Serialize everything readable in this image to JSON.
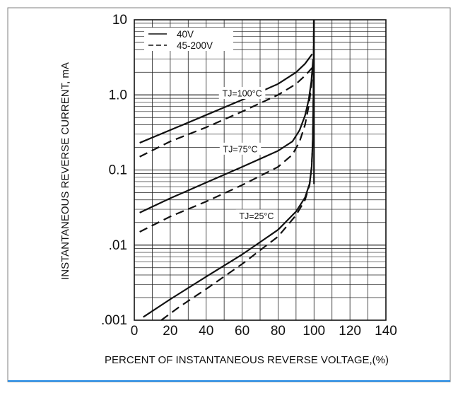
{
  "chart_data": {
    "type": "line",
    "title": "",
    "xlabel": "PERCENT OF INSTANTANEOUS REVERSE VOLTAGE,(%)",
    "ylabel": "INSTANTANEOUS REVERSE CURRENT, mA",
    "xlim": [
      0,
      140
    ],
    "ylim": [
      0.001,
      10
    ],
    "y_scale": "log",
    "grid": true,
    "x_ticks": [
      "0",
      "20",
      "40",
      "60",
      "80",
      "100",
      "120",
      "140"
    ],
    "y_ticks": [
      {
        "value": 10,
        "label": "10"
      },
      {
        "value": 1,
        "label": "1.0"
      },
      {
        "value": 0.1,
        "label": "0.1"
      },
      {
        "value": 0.01,
        "label": ".01"
      },
      {
        "value": 0.001,
        "label": ".001"
      }
    ],
    "legend": {
      "position": "top-left",
      "entries": [
        {
          "label": "40V",
          "style": "solid"
        },
        {
          "label": "45-200V",
          "style": "dashed"
        }
      ]
    },
    "annotations": [
      {
        "text": "TJ=100°C",
        "x": 60,
        "y": 1.05
      },
      {
        "text": "TJ=75°C",
        "x": 59,
        "y": 0.19
      },
      {
        "text": "TJ=25°C",
        "x": 68,
        "y": 0.0245
      }
    ],
    "series": [
      {
        "style": "solid",
        "x": [
          3,
          20,
          40,
          60,
          80,
          90,
          95,
          99
        ],
        "y": [
          0.23,
          0.34,
          0.54,
          0.86,
          1.4,
          2.0,
          2.6,
          3.5
        ]
      },
      {
        "style": "dashed",
        "x": [
          3,
          20,
          40,
          60,
          80,
          90,
          95,
          99
        ],
        "y": [
          0.15,
          0.24,
          0.37,
          0.6,
          1.0,
          1.4,
          1.8,
          2.3
        ]
      },
      {
        "style": "solid",
        "x": [
          3,
          20,
          40,
          60,
          80,
          88,
          92,
          95,
          97,
          98.5,
          99.5
        ],
        "y": [
          0.027,
          0.042,
          0.068,
          0.11,
          0.18,
          0.24,
          0.34,
          0.53,
          0.85,
          1.5,
          3
        ]
      },
      {
        "style": "dashed",
        "x": [
          3,
          20,
          40,
          60,
          80,
          88,
          92,
          95,
          97,
          98.5,
          99.5
        ],
        "y": [
          0.015,
          0.024,
          0.038,
          0.063,
          0.11,
          0.16,
          0.24,
          0.4,
          0.7,
          1.3,
          2.5
        ]
      },
      {
        "style": "solid",
        "x": [
          5,
          20,
          40,
          60,
          80,
          90,
          95,
          97.5,
          98.7,
          99.3,
          99.7,
          99.9
        ],
        "y": [
          0.0011,
          0.0019,
          0.0038,
          0.0075,
          0.016,
          0.028,
          0.043,
          0.065,
          0.11,
          0.25,
          1,
          10
        ]
      },
      {
        "style": "dashed",
        "x": [
          15,
          25,
          40,
          60,
          80,
          90,
          95,
          97.5,
          98.7,
          99.3,
          99.7,
          99.9
        ],
        "y": [
          0.001,
          0.0015,
          0.0026,
          0.0056,
          0.013,
          0.025,
          0.04,
          0.063,
          0.11,
          0.25,
          1,
          10
        ]
      }
    ]
  }
}
